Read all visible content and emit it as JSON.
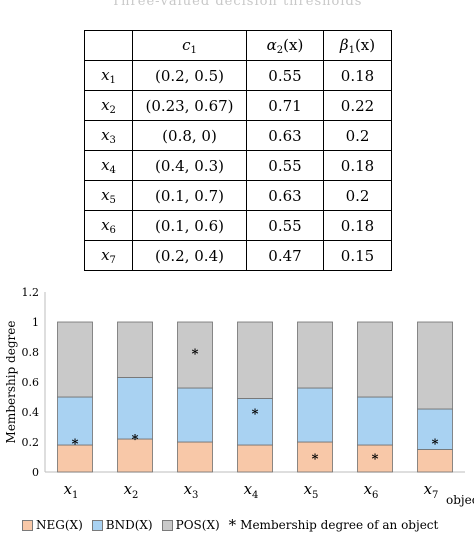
{
  "table": {
    "caption": "Three-valued decision thresholds",
    "headers": {
      "col0": "",
      "c1": {
        "base": "c",
        "sub": "1"
      },
      "alpha": {
        "base": "α",
        "sub": "2",
        "arg": "(x)"
      },
      "beta": {
        "base": "β",
        "sub": "1",
        "arg": "(x)"
      }
    },
    "rows": [
      {
        "obj": "x",
        "sub": "1",
        "c1": "(0.2, 0.5)",
        "alpha": "0.55",
        "beta": "0.18"
      },
      {
        "obj": "x",
        "sub": "2",
        "c1": "(0.23, 0.67)",
        "alpha": "0.71",
        "beta": "0.22"
      },
      {
        "obj": "x",
        "sub": "3",
        "c1": "(0.8, 0)",
        "alpha": "0.63",
        "beta": "0.2"
      },
      {
        "obj": "x",
        "sub": "4",
        "c1": "(0.4, 0.3)",
        "alpha": "0.55",
        "beta": "0.18"
      },
      {
        "obj": "x",
        "sub": "5",
        "c1": "(0.1, 0.7)",
        "alpha": "0.63",
        "beta": "0.2"
      },
      {
        "obj": "x",
        "sub": "6",
        "c1": "(0.1, 0.6)",
        "alpha": "0.55",
        "beta": "0.18"
      },
      {
        "obj": "x",
        "sub": "7",
        "c1": "(0.2, 0.4)",
        "alpha": "0.47",
        "beta": "0.15"
      }
    ]
  },
  "chart_data": {
    "type": "bar",
    "stacked": true,
    "title": "",
    "ylabel": "Membership degree",
    "xlabel": "object",
    "ylim": [
      0,
      1.2
    ],
    "yticks": [
      "0",
      "0.2",
      "0.4",
      "0.6",
      "0.8",
      "1",
      "1.2"
    ],
    "grid": false,
    "legend_position": "bottom",
    "categories": [
      {
        "base": "x",
        "sub": "1"
      },
      {
        "base": "x",
        "sub": "2"
      },
      {
        "base": "x",
        "sub": "3"
      },
      {
        "base": "x",
        "sub": "4"
      },
      {
        "base": "x",
        "sub": "5"
      },
      {
        "base": "x",
        "sub": "6"
      },
      {
        "base": "x",
        "sub": "7"
      }
    ],
    "series": [
      {
        "name": "NEG(X)",
        "color": "#f8c8a8",
        "values": [
          0.18,
          0.22,
          0.2,
          0.18,
          0.2,
          0.18,
          0.15
        ]
      },
      {
        "name": "BND(X)",
        "color": "#a9d2f2",
        "values": [
          0.32,
          0.41,
          0.36,
          0.31,
          0.36,
          0.32,
          0.27
        ]
      },
      {
        "name": "POS(X)",
        "color": "#c9c9c9",
        "values": [
          0.5,
          0.37,
          0.44,
          0.51,
          0.44,
          0.5,
          0.58
        ]
      }
    ],
    "markers": {
      "name": "Membership degree of an object",
      "symbol": "*",
      "values": [
        0.2,
        0.23,
        0.8,
        0.4,
        0.1,
        0.1,
        0.2
      ]
    }
  }
}
